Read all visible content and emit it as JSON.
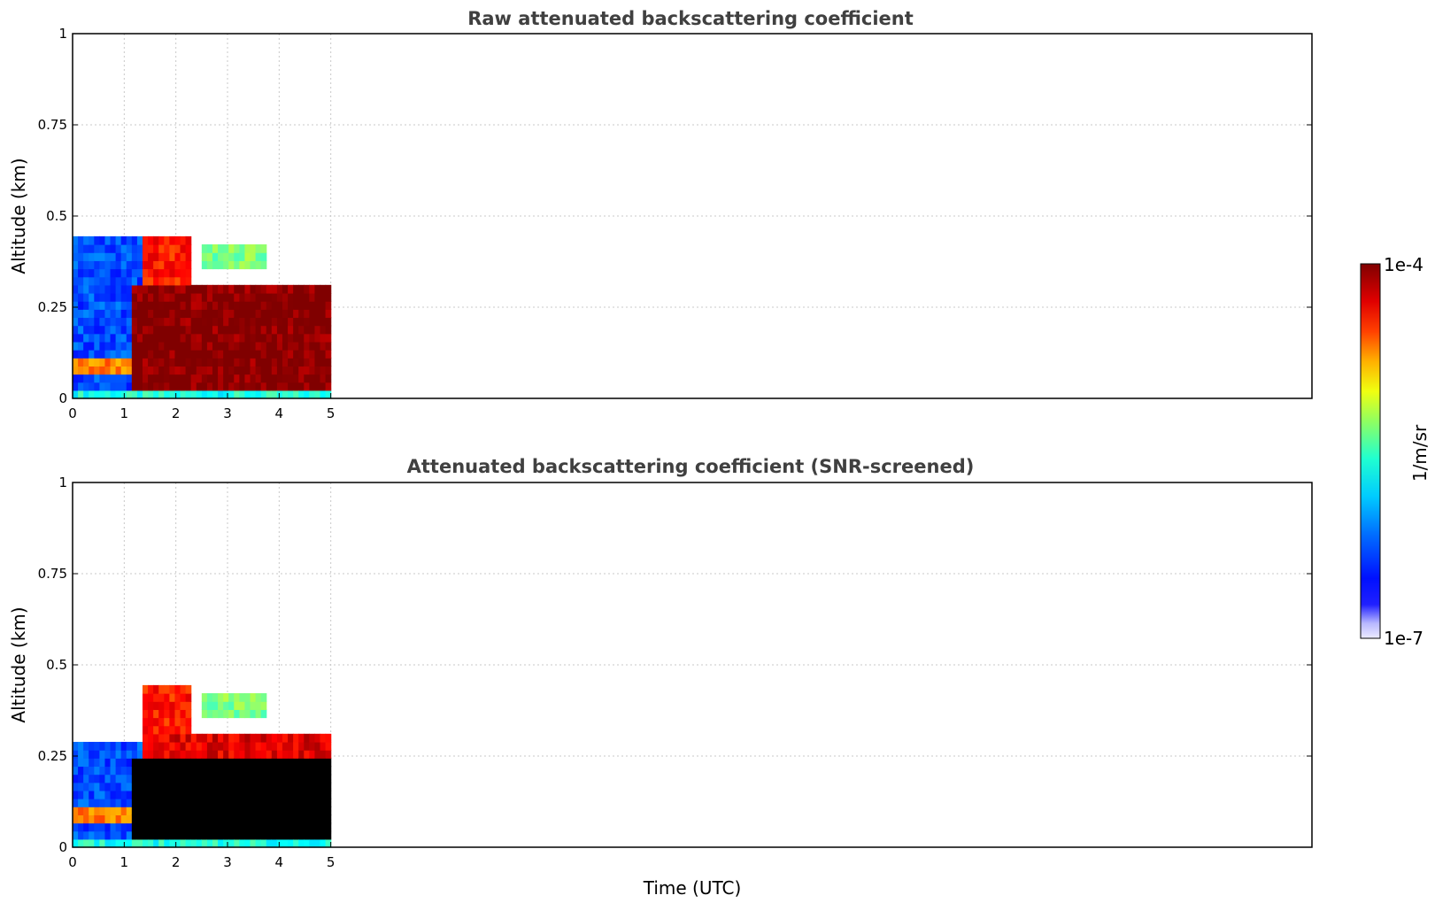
{
  "chart_data": {
    "type": "heatmap",
    "colorbar": {
      "label": "1/m/sr",
      "min_label": "1e-7",
      "max_label": "1e-4",
      "scale": "log",
      "colormap": "jet",
      "range": [
        1e-07,
        0.0001
      ]
    },
    "xlabel": "Time (UTC)",
    "panels": [
      {
        "title": "Raw attenuated backscattering coefficient",
        "ylabel": "Altitude (km)",
        "xlim": [
          0,
          24
        ],
        "ylim": [
          0,
          1
        ],
        "xticks": [
          "0",
          "1",
          "2",
          "3",
          "4",
          "5"
        ],
        "xtick_values": [
          0,
          1,
          2,
          3,
          4,
          5
        ],
        "yticks": [
          "0",
          "0.25",
          "0.5",
          "0.75",
          "1"
        ],
        "ytick_values": [
          0,
          0.25,
          0.5,
          0.75,
          1
        ],
        "grid": true,
        "data_extent_hours": [
          0,
          5
        ],
        "features": [
          {
            "name": "near-surface-layer",
            "t": [
              0,
              5
            ],
            "alt": [
              0,
              0.03
            ],
            "level": 0.4
          },
          {
            "name": "boundary-layer",
            "t": [
              0,
              1.4
            ],
            "alt": [
              0.03,
              0.45
            ],
            "level": 0.2
          },
          {
            "name": "thin-aerosol-layer",
            "t": [
              0,
              1.4
            ],
            "alt": [
              0.07,
              0.12
            ],
            "level": 0.75
          },
          {
            "name": "dense-cloud",
            "t": [
              1.1,
              5
            ],
            "alt": [
              0.03,
              0.3
            ],
            "level": 1.0
          },
          {
            "name": "cloud-top-plume",
            "t": [
              1.4,
              2.3
            ],
            "alt": [
              0.28,
              0.45
            ],
            "level": 0.85
          },
          {
            "name": "elevated-layer",
            "t": [
              2.5,
              3.7
            ],
            "alt": [
              0.35,
              0.42
            ],
            "level": 0.5
          }
        ]
      },
      {
        "title": "Attenuated backscattering coefficient (SNR-screened)",
        "ylabel": "Altitude (km)",
        "xlim": [
          0,
          24
        ],
        "ylim": [
          0,
          1
        ],
        "xticks": [
          "0",
          "1",
          "2",
          "3",
          "4",
          "5"
        ],
        "xtick_values": [
          0,
          1,
          2,
          3,
          4,
          5
        ],
        "yticks": [
          "0",
          "0.25",
          "0.5",
          "0.75",
          "1"
        ],
        "ytick_values": [
          0,
          0.25,
          0.5,
          0.75,
          1
        ],
        "grid": true,
        "data_extent_hours": [
          0,
          5
        ],
        "features": [
          {
            "name": "near-surface-layer",
            "t": [
              0,
              5
            ],
            "alt": [
              0,
              0.03
            ],
            "level": 0.4
          },
          {
            "name": "boundary-layer",
            "t": [
              0,
              1.4
            ],
            "alt": [
              0.03,
              0.29
            ],
            "level": 0.2
          },
          {
            "name": "thin-aerosol-layer",
            "t": [
              0,
              1.4
            ],
            "alt": [
              0.07,
              0.12
            ],
            "level": 0.75
          },
          {
            "name": "saturated-cloud-core",
            "t": [
              1.1,
              5
            ],
            "alt": [
              0.03,
              0.25
            ],
            "level": 2.0
          },
          {
            "name": "cloud-edge",
            "t": [
              1.4,
              5
            ],
            "alt": [
              0.18,
              0.3
            ],
            "level": 0.9
          },
          {
            "name": "cloud-top-plume",
            "t": [
              1.4,
              2.3
            ],
            "alt": [
              0.28,
              0.45
            ],
            "level": 0.85
          },
          {
            "name": "elevated-layer",
            "t": [
              2.5,
              3.7
            ],
            "alt": [
              0.35,
              0.42
            ],
            "level": 0.5
          }
        ]
      }
    ]
  }
}
